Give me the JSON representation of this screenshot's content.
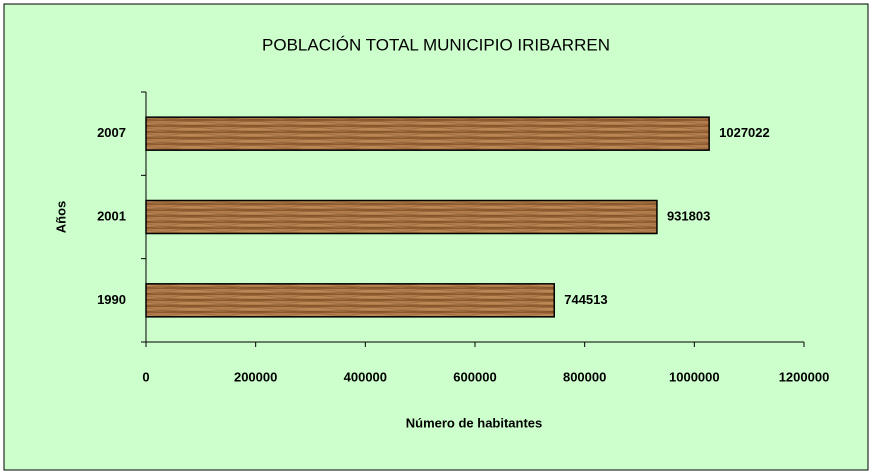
{
  "chart_data": {
    "type": "bar",
    "orientation": "horizontal",
    "title": "POBLACIÓN TOTAL MUNICIPIO IRIBARREN",
    "xlabel": "Número de habitantes",
    "ylabel": "Años",
    "categories": [
      "1990",
      "2001",
      "2007"
    ],
    "values": [
      744513,
      931803,
      1027022
    ],
    "xlim": [
      0,
      1200000
    ],
    "xticks": [
      0,
      200000,
      400000,
      600000,
      800000,
      1000000,
      1200000
    ],
    "show_value_labels": true,
    "background": "#ccffcc"
  }
}
